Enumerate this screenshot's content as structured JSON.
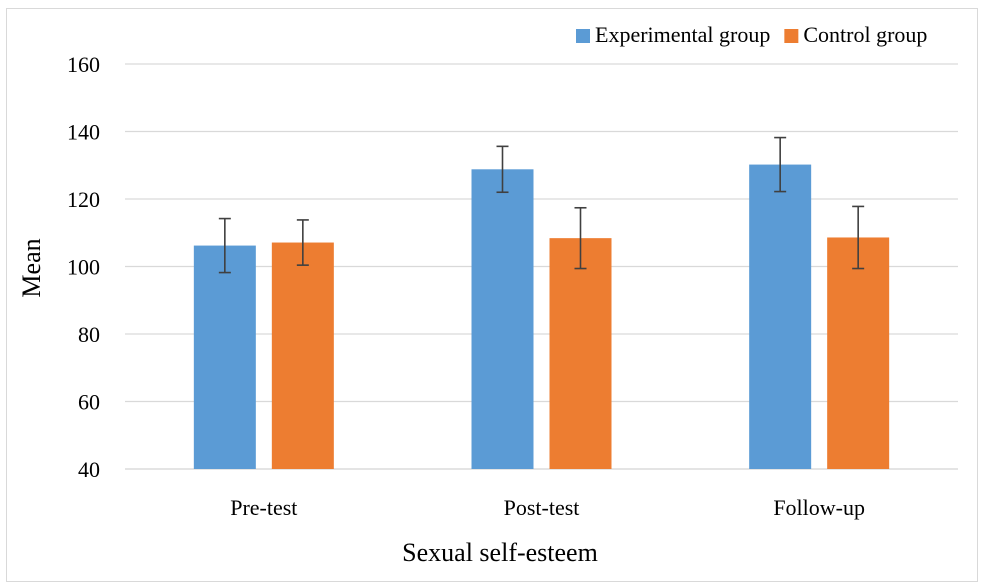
{
  "chart_data": {
    "type": "bar",
    "categories": [
      "Pre-test",
      "Post-test",
      "Follow-up"
    ],
    "series": [
      {
        "name": "Experimental group",
        "color": "#5b9bd5",
        "values": [
          106.2,
          128.8,
          130.2
        ],
        "error": [
          8.0,
          6.8,
          8.0
        ]
      },
      {
        "name": "Control group",
        "color": "#ed7d31",
        "values": [
          107.1,
          108.4,
          108.6
        ],
        "error": [
          6.7,
          9.0,
          9.2
        ]
      }
    ],
    "title": "",
    "xlabel": "Sexual self-esteem",
    "ylabel": "Mean",
    "ylim": [
      40,
      160
    ],
    "yticks": [
      "40",
      "60",
      "80",
      "100",
      "120",
      "140",
      "160"
    ],
    "grid": true,
    "legend_position": "top-right"
  }
}
